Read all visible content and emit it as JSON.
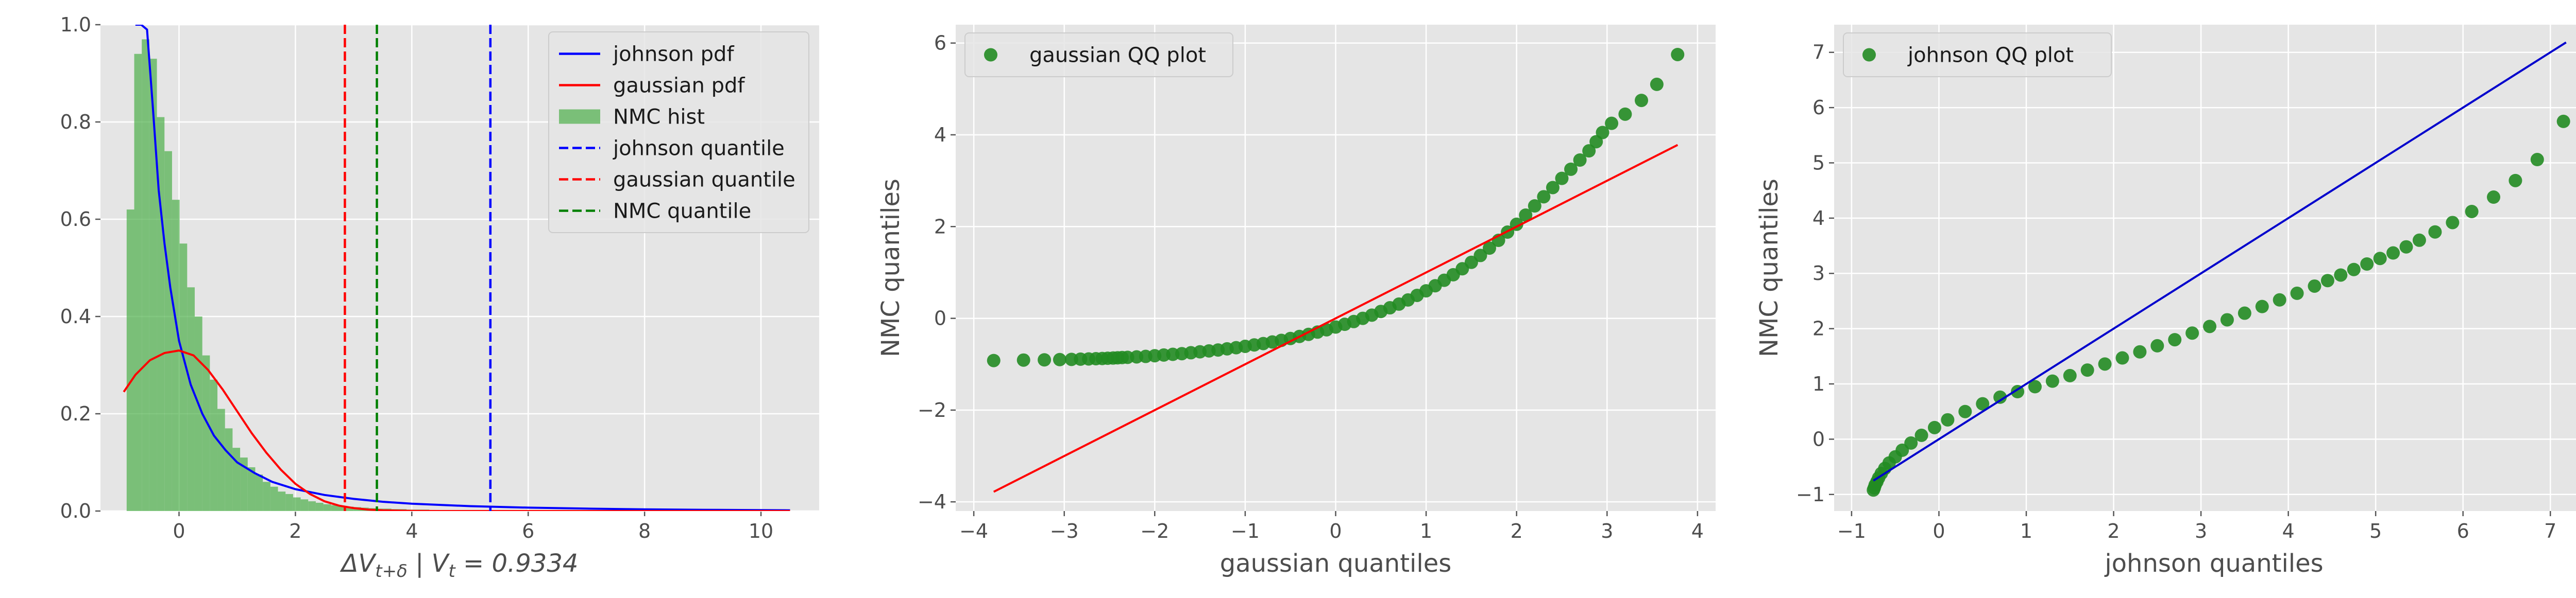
{
  "chart_data": [
    {
      "type": "line",
      "xlabel": "ΔV_{t+δ} | V_t = 0.9334",
      "xlim": [
        -1.35,
        11.0
      ],
      "ylim": [
        0,
        1.0
      ],
      "xticks": [
        0,
        2,
        4,
        6,
        8,
        10
      ],
      "yticks": [
        0.0,
        0.2,
        0.4,
        0.6,
        0.8,
        1.0
      ],
      "grid": true,
      "legend_position": "top-right",
      "histogram": {
        "name": "NMC hist",
        "color": "#4daf4a",
        "bin_start": -0.9,
        "bin_width": 0.13,
        "heights": [
          0.62,
          0.94,
          0.97,
          0.93,
          0.81,
          0.74,
          0.64,
          0.55,
          0.46,
          0.4,
          0.32,
          0.27,
          0.21,
          0.17,
          0.13,
          0.11,
          0.09,
          0.075,
          0.06,
          0.05,
          0.04,
          0.035,
          0.028,
          0.024,
          0.02,
          0.017,
          0.014,
          0.012,
          0.01,
          0.009,
          0.008,
          0.007,
          0.006,
          0.005,
          0.005,
          0.004,
          0.004,
          0.003,
          0.003,
          0.003
        ]
      },
      "series": [
        {
          "name": "johnson pdf",
          "color": "#0000ff",
          "x": [
            -0.75,
            -0.65,
            -0.55,
            -0.45,
            -0.35,
            -0.25,
            -0.15,
            0.0,
            0.2,
            0.4,
            0.6,
            0.8,
            1.0,
            1.3,
            1.6,
            2.0,
            2.5,
            3.0,
            3.5,
            4.0,
            5.0,
            6.0,
            7.0,
            8.0,
            9.0,
            10.5
          ],
          "y": [
            1.0,
            1.0,
            0.99,
            0.83,
            0.66,
            0.55,
            0.46,
            0.35,
            0.26,
            0.2,
            0.155,
            0.125,
            0.1,
            0.078,
            0.06,
            0.045,
            0.033,
            0.025,
            0.019,
            0.015,
            0.01,
            0.007,
            0.005,
            0.0035,
            0.0025,
            0.0015
          ]
        },
        {
          "name": "gaussian pdf",
          "color": "#ff0000",
          "x": [
            -0.95,
            -0.75,
            -0.5,
            -0.25,
            0.0,
            0.25,
            0.5,
            0.75,
            1.0,
            1.25,
            1.5,
            1.75,
            2.0,
            2.25,
            2.5,
            2.75,
            3.0,
            3.25,
            3.5,
            4.0,
            4.5,
            5.0,
            6.0,
            8.0,
            10.5
          ],
          "y": [
            0.245,
            0.28,
            0.31,
            0.325,
            0.33,
            0.32,
            0.29,
            0.25,
            0.205,
            0.16,
            0.12,
            0.085,
            0.056,
            0.035,
            0.02,
            0.011,
            0.006,
            0.003,
            0.0015,
            0.0003,
            0.0,
            0.0,
            0.0,
            0.0,
            0.0
          ]
        }
      ],
      "vlines": [
        {
          "name": "johnson quantile",
          "x": 5.35,
          "color": "#0000ff",
          "dashed": true
        },
        {
          "name": "gaussian quantile",
          "x": 2.85,
          "color": "#ff0000",
          "dashed": true
        },
        {
          "name": "NMC quantile",
          "x": 3.4,
          "color": "#008000",
          "dashed": true
        }
      ],
      "legend": [
        "johnson pdf",
        "gaussian pdf",
        "NMC hist",
        "johnson quantile",
        "gaussian quantile",
        "NMC quantile"
      ]
    },
    {
      "type": "scatter",
      "xlabel": "gaussian quantiles",
      "ylabel": "NMC quantiles",
      "xlim": [
        -4.2,
        4.2
      ],
      "ylim": [
        -4.2,
        6.4
      ],
      "xticks": [
        -4,
        -3,
        -2,
        -1,
        0,
        1,
        2,
        3,
        4
      ],
      "yticks": [
        -4,
        -2,
        0,
        2,
        4,
        6
      ],
      "grid": true,
      "legend_position": "top-left",
      "series": [
        {
          "name": "gaussian QQ plot",
          "color": "#228B22",
          "x": [
            -3.78,
            -3.45,
            -3.22,
            -3.05,
            -2.92,
            -2.82,
            -2.73,
            -2.65,
            -2.58,
            -2.52,
            -2.46,
            -2.41,
            -2.36,
            -2.3,
            -2.2,
            -2.1,
            -2.0,
            -1.9,
            -1.8,
            -1.7,
            -1.6,
            -1.5,
            -1.4,
            -1.3,
            -1.2,
            -1.1,
            -1.0,
            -0.9,
            -0.8,
            -0.7,
            -0.6,
            -0.5,
            -0.4,
            -0.3,
            -0.2,
            -0.1,
            0.0,
            0.1,
            0.2,
            0.3,
            0.4,
            0.5,
            0.6,
            0.7,
            0.8,
            0.9,
            1.0,
            1.1,
            1.2,
            1.3,
            1.4,
            1.5,
            1.6,
            1.7,
            1.8,
            1.9,
            2.0,
            2.1,
            2.2,
            2.3,
            2.4,
            2.5,
            2.6,
            2.7,
            2.8,
            2.88,
            2.95,
            3.05,
            3.2,
            3.38,
            3.55,
            3.78
          ],
          "y": [
            -0.92,
            -0.91,
            -0.905,
            -0.9,
            -0.895,
            -0.89,
            -0.885,
            -0.88,
            -0.875,
            -0.87,
            -0.865,
            -0.86,
            -0.855,
            -0.85,
            -0.84,
            -0.83,
            -0.815,
            -0.8,
            -0.785,
            -0.77,
            -0.75,
            -0.73,
            -0.71,
            -0.69,
            -0.665,
            -0.64,
            -0.61,
            -0.58,
            -0.55,
            -0.515,
            -0.48,
            -0.44,
            -0.395,
            -0.35,
            -0.3,
            -0.25,
            -0.19,
            -0.13,
            -0.07,
            0.0,
            0.07,
            0.15,
            0.23,
            0.31,
            0.4,
            0.5,
            0.6,
            0.71,
            0.83,
            0.95,
            1.08,
            1.22,
            1.37,
            1.53,
            1.7,
            1.88,
            2.05,
            2.25,
            2.45,
            2.65,
            2.85,
            3.05,
            3.25,
            3.45,
            3.65,
            3.85,
            4.05,
            4.25,
            4.45,
            4.75,
            5.1,
            5.75
          ]
        },
        {
          "name": "",
          "color": "#ff0000",
          "line": true,
          "x": [
            -3.78,
            3.78
          ],
          "y": [
            -3.78,
            3.78
          ]
        }
      ],
      "legend": [
        "gaussian QQ plot"
      ]
    },
    {
      "type": "scatter",
      "xlabel": "johnson quantiles",
      "ylabel": "NMC quantiles",
      "xlim": [
        -1.2,
        7.5
      ],
      "ylim": [
        -1.3,
        7.5
      ],
      "xticks": [
        -1,
        0,
        1,
        2,
        3,
        4,
        5,
        6,
        7
      ],
      "yticks": [
        -1,
        0,
        1,
        2,
        3,
        4,
        5,
        6,
        7
      ],
      "grid": true,
      "legend_position": "top-left",
      "series": [
        {
          "name": "johnson QQ plot",
          "color": "#228B22",
          "x": [
            -0.75,
            -0.74,
            -0.73,
            -0.71,
            -0.69,
            -0.66,
            -0.62,
            -0.57,
            -0.5,
            -0.42,
            -0.32,
            -0.2,
            -0.05,
            0.1,
            0.3,
            0.5,
            0.7,
            0.9,
            1.1,
            1.3,
            1.5,
            1.7,
            1.9,
            2.1,
            2.3,
            2.5,
            2.7,
            2.9,
            3.1,
            3.3,
            3.5,
            3.7,
            3.9,
            4.1,
            4.3,
            4.45,
            4.6,
            4.75,
            4.9,
            5.05,
            5.2,
            5.35,
            5.5,
            5.68,
            5.88,
            6.1,
            6.35,
            6.6,
            6.85,
            7.15
          ],
          "y": [
            -0.92,
            -0.88,
            -0.83,
            -0.77,
            -0.7,
            -0.62,
            -0.53,
            -0.43,
            -0.32,
            -0.2,
            -0.07,
            0.07,
            0.21,
            0.35,
            0.5,
            0.64,
            0.76,
            0.86,
            0.95,
            1.05,
            1.15,
            1.25,
            1.36,
            1.47,
            1.58,
            1.69,
            1.8,
            1.92,
            2.04,
            2.16,
            2.28,
            2.4,
            2.52,
            2.64,
            2.77,
            2.87,
            2.97,
            3.07,
            3.17,
            3.27,
            3.37,
            3.48,
            3.6,
            3.75,
            3.92,
            4.12,
            4.38,
            4.68,
            5.06,
            5.75
          ]
        },
        {
          "name": "",
          "color": "#0000cc",
          "line": true,
          "x": [
            -0.75,
            7.18
          ],
          "y": [
            -0.75,
            7.18
          ]
        }
      ],
      "legend": [
        "johnson QQ plot"
      ]
    }
  ]
}
